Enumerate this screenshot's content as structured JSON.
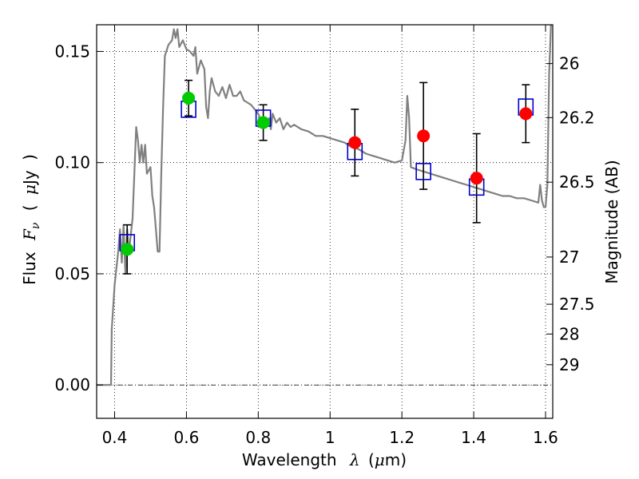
{
  "chart_data": {
    "type": "scatter",
    "xlabel": {
      "prefix": "Wavelength",
      "symbol": "λ",
      "open": "(",
      "unit_symbol": "μ",
      "unit": "m)"
    },
    "ylabel": {
      "prefix": "Flux",
      "symbol": "F",
      "subscript": "ν",
      "open": "(",
      "unit_symbol": "μ",
      "unit": "Jy",
      "close": ")"
    },
    "y2label": "Magnitude (AB)",
    "xlim": [
      0.35,
      1.62
    ],
    "ylim": [
      -0.015,
      0.162
    ],
    "grid": true,
    "x_ticks": [
      0.4,
      0.6,
      0.8,
      1.0,
      1.2,
      1.4,
      1.6
    ],
    "x_tick_labels": [
      "0.4",
      "0.6",
      "0.8",
      "1",
      "1.2",
      "1.4",
      "1.6"
    ],
    "y_ticks": [
      0.0,
      0.05,
      0.1,
      0.15
    ],
    "y_tick_labels": [
      "0.00",
      "0.05",
      "0.10",
      "0.15"
    ],
    "y2_ticks": [
      {
        "label": "26",
        "mag": 26.0
      },
      {
        "label": "26.2",
        "mag": 26.2
      },
      {
        "label": "26.5",
        "mag": 26.5
      },
      {
        "label": "27",
        "mag": 27.0
      },
      {
        "label": "27.5",
        "mag": 27.5
      },
      {
        "label": "28",
        "mag": 28.0
      },
      {
        "label": "29",
        "mag": 29.0
      }
    ],
    "zero_line": 0.0,
    "model_spectrum": {
      "color": "#808080",
      "points": [
        [
          0.35,
          0.0
        ],
        [
          0.39,
          0.0
        ],
        [
          0.392,
          0.025
        ],
        [
          0.4,
          0.045
        ],
        [
          0.41,
          0.06
        ],
        [
          0.415,
          0.07
        ],
        [
          0.42,
          0.055
        ],
        [
          0.425,
          0.072
        ],
        [
          0.43,
          0.05
        ],
        [
          0.435,
          0.07
        ],
        [
          0.44,
          0.06
        ],
        [
          0.45,
          0.075
        ],
        [
          0.455,
          0.095
        ],
        [
          0.46,
          0.116
        ],
        [
          0.465,
          0.11
        ],
        [
          0.47,
          0.1
        ],
        [
          0.475,
          0.108
        ],
        [
          0.48,
          0.1
        ],
        [
          0.485,
          0.108
        ],
        [
          0.49,
          0.095
        ],
        [
          0.5,
          0.098
        ],
        [
          0.505,
          0.085
        ],
        [
          0.51,
          0.08
        ],
        [
          0.515,
          0.07
        ],
        [
          0.52,
          0.06
        ],
        [
          0.525,
          0.06
        ],
        [
          0.53,
          0.095
        ],
        [
          0.535,
          0.125
        ],
        [
          0.54,
          0.148
        ],
        [
          0.55,
          0.153
        ],
        [
          0.56,
          0.155
        ],
        [
          0.565,
          0.16
        ],
        [
          0.57,
          0.156
        ],
        [
          0.575,
          0.16
        ],
        [
          0.58,
          0.152
        ],
        [
          0.59,
          0.155
        ],
        [
          0.6,
          0.151
        ],
        [
          0.61,
          0.15
        ],
        [
          0.62,
          0.148
        ],
        [
          0.625,
          0.152
        ],
        [
          0.63,
          0.14
        ],
        [
          0.64,
          0.146
        ],
        [
          0.65,
          0.142
        ],
        [
          0.655,
          0.125
        ],
        [
          0.66,
          0.12
        ],
        [
          0.665,
          0.132
        ],
        [
          0.67,
          0.138
        ],
        [
          0.68,
          0.132
        ],
        [
          0.69,
          0.13
        ],
        [
          0.7,
          0.134
        ],
        [
          0.71,
          0.129
        ],
        [
          0.72,
          0.135
        ],
        [
          0.73,
          0.13
        ],
        [
          0.74,
          0.13
        ],
        [
          0.75,
          0.132
        ],
        [
          0.76,
          0.128
        ],
        [
          0.77,
          0.127
        ],
        [
          0.78,
          0.126
        ],
        [
          0.79,
          0.124
        ],
        [
          0.8,
          0.122
        ],
        [
          0.81,
          0.118
        ],
        [
          0.82,
          0.116
        ],
        [
          0.83,
          0.12
        ],
        [
          0.835,
          0.115
        ],
        [
          0.84,
          0.122
        ],
        [
          0.85,
          0.118
        ],
        [
          0.86,
          0.12
        ],
        [
          0.87,
          0.115
        ],
        [
          0.88,
          0.118
        ],
        [
          0.89,
          0.116
        ],
        [
          0.9,
          0.117
        ],
        [
          0.92,
          0.115
        ],
        [
          0.94,
          0.114
        ],
        [
          0.96,
          0.112
        ],
        [
          0.98,
          0.112
        ],
        [
          1.0,
          0.111
        ],
        [
          1.02,
          0.11
        ],
        [
          1.04,
          0.109
        ],
        [
          1.06,
          0.107
        ],
        [
          1.08,
          0.106
        ],
        [
          1.1,
          0.104
        ],
        [
          1.12,
          0.103
        ],
        [
          1.14,
          0.102
        ],
        [
          1.16,
          0.101
        ],
        [
          1.18,
          0.1
        ],
        [
          1.2,
          0.101
        ],
        [
          1.21,
          0.11
        ],
        [
          1.215,
          0.13
        ],
        [
          1.22,
          0.12
        ],
        [
          1.225,
          0.098
        ],
        [
          1.24,
          0.097
        ],
        [
          1.26,
          0.096
        ],
        [
          1.28,
          0.095
        ],
        [
          1.3,
          0.094
        ],
        [
          1.32,
          0.093
        ],
        [
          1.34,
          0.092
        ],
        [
          1.36,
          0.091
        ],
        [
          1.38,
          0.09
        ],
        [
          1.4,
          0.089
        ],
        [
          1.42,
          0.088
        ],
        [
          1.44,
          0.087
        ],
        [
          1.46,
          0.086
        ],
        [
          1.48,
          0.085
        ],
        [
          1.5,
          0.085
        ],
        [
          1.52,
          0.084
        ],
        [
          1.54,
          0.084
        ],
        [
          1.56,
          0.083
        ],
        [
          1.58,
          0.082
        ],
        [
          1.585,
          0.09
        ],
        [
          1.59,
          0.083
        ],
        [
          1.595,
          0.08
        ],
        [
          1.6,
          0.08
        ],
        [
          1.605,
          0.09
        ],
        [
          1.61,
          0.14
        ],
        [
          1.615,
          0.162
        ]
      ]
    },
    "series": [
      {
        "name": "model-photometry",
        "marker": "open-square",
        "color": "#0000cc",
        "points": [
          {
            "x": 0.435,
            "y": 0.064
          },
          {
            "x": 0.606,
            "y": 0.124
          },
          {
            "x": 0.814,
            "y": 0.12
          },
          {
            "x": 1.069,
            "y": 0.105
          },
          {
            "x": 1.26,
            "y": 0.096
          },
          {
            "x": 1.408,
            "y": 0.089
          },
          {
            "x": 1.545,
            "y": 0.125
          }
        ]
      },
      {
        "name": "observed-optical",
        "marker": "filled-circle",
        "color": "#00cc00",
        "points": [
          {
            "x": 0.435,
            "y": 0.061,
            "yerr": 0.011
          },
          {
            "x": 0.606,
            "y": 0.129,
            "yerr": 0.008
          },
          {
            "x": 0.814,
            "y": 0.118,
            "yerr": 0.008
          }
        ]
      },
      {
        "name": "observed-nir",
        "marker": "filled-circle",
        "color": "#ff0000",
        "points": [
          {
            "x": 1.069,
            "y": 0.109,
            "yerr": 0.015
          },
          {
            "x": 1.26,
            "y": 0.112,
            "yerr": 0.024
          },
          {
            "x": 1.408,
            "y": 0.093,
            "yerr": 0.02
          },
          {
            "x": 1.545,
            "y": 0.122,
            "yerr": 0.013
          }
        ]
      }
    ]
  }
}
